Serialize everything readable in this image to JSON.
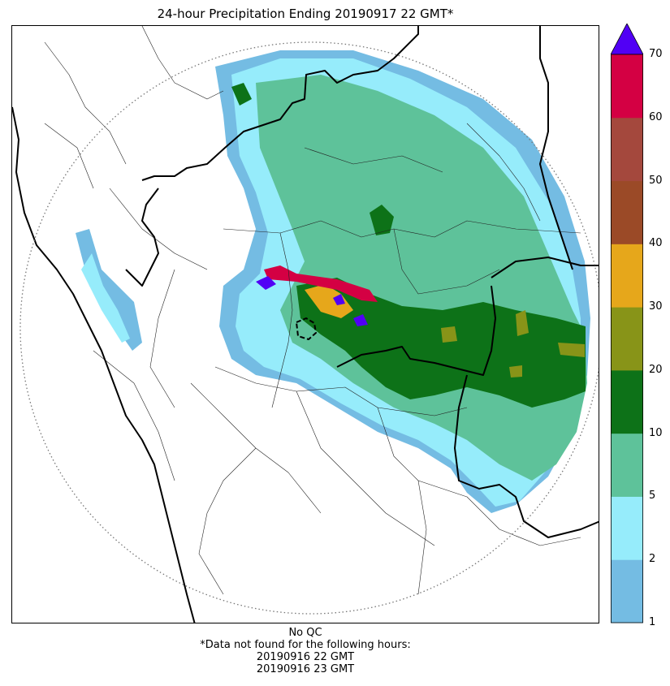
{
  "title": "24-hour Precipitation Ending 20190917 22 GMT*",
  "colorbar": {
    "ticks": [
      "1",
      "2",
      "5",
      "10",
      "20",
      "30",
      "40",
      "50",
      "60",
      "70"
    ],
    "bins": [
      {
        "from": "1",
        "to": "2",
        "color": "#74bce3"
      },
      {
        "from": "2",
        "to": "5",
        "color": "#96ecfb"
      },
      {
        "from": "5",
        "to": "10",
        "color": "#5ec29a"
      },
      {
        "from": "10",
        "to": "20",
        "color": "#0d7218"
      },
      {
        "from": "20",
        "to": "30",
        "color": "#889418"
      },
      {
        "from": "30",
        "to": "40",
        "color": "#e6a71b"
      },
      {
        "from": "40",
        "to": "50",
        "color": "#9b4a27"
      },
      {
        "from": "50",
        "to": "60",
        "color": "#a4483d"
      },
      {
        "from": "60",
        "to": "70",
        "color": "#d40043"
      }
    ],
    "over_color": "#5100f5",
    "extend": "max"
  },
  "footer": {
    "qc_note": "No QC",
    "missing_note": "*Data not found for the following hours:",
    "missing_hours": [
      "20190916 22 GMT",
      "20190916 23 GMT"
    ]
  }
}
